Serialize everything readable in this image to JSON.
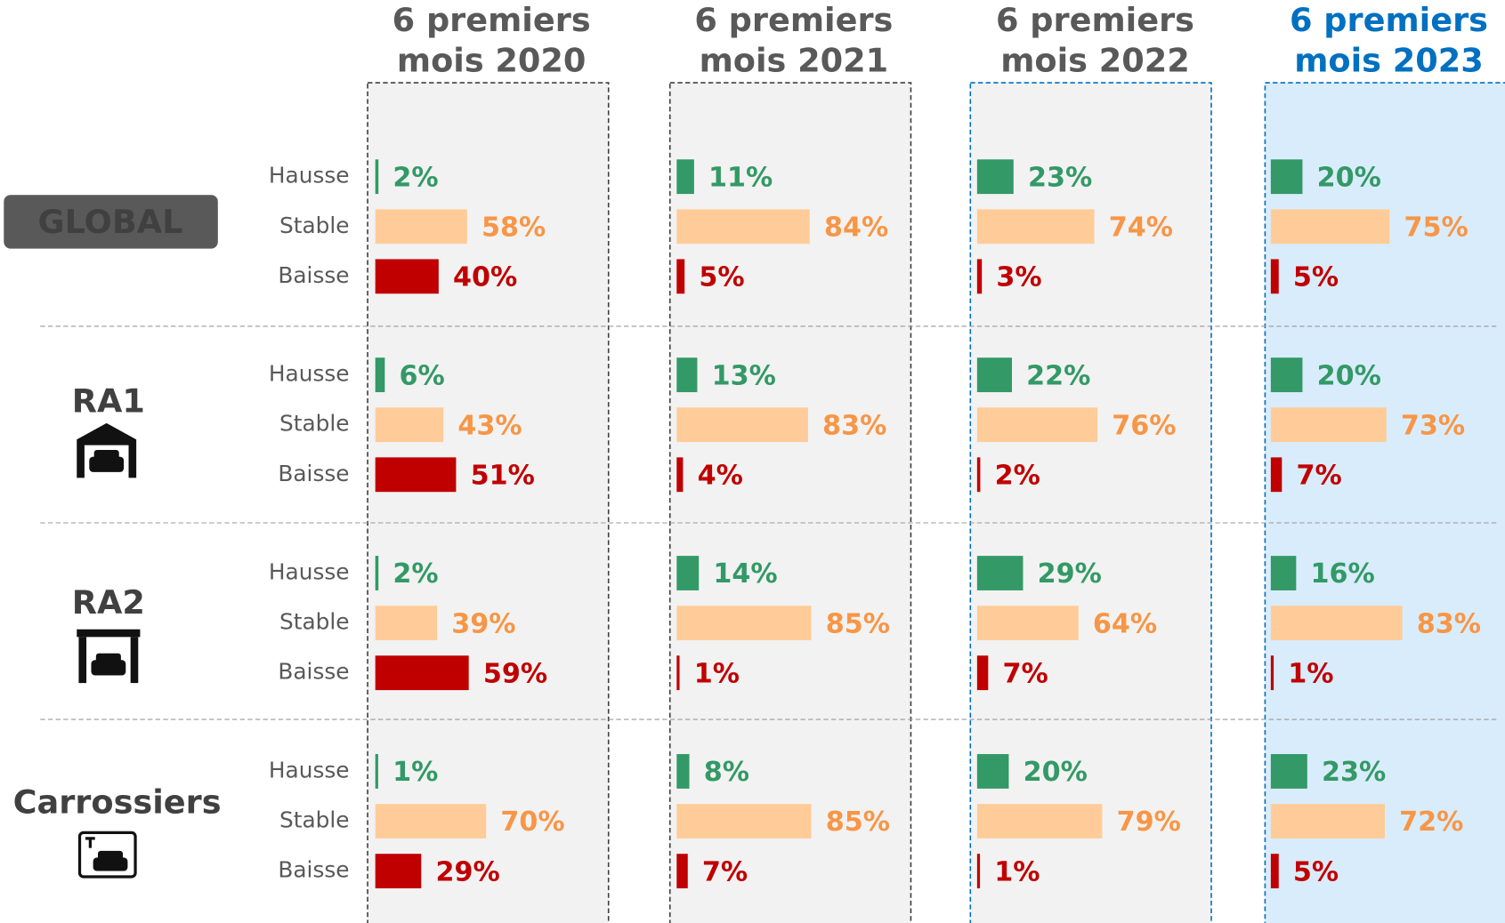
{
  "chart_data": [
    {
      "type": "bar",
      "title": "GLOBAL",
      "categories": [
        "Hausse",
        "Stable",
        "Baisse"
      ],
      "colors": [
        "#339966",
        "#ffcc99",
        "#c00000"
      ],
      "label_colors": [
        "#339966",
        "#f79646",
        "#c00000"
      ],
      "xlim": [
        0,
        100
      ],
      "series": [
        {
          "name": "6 premiers mois 2020",
          "color": "#595959",
          "values": [
            2,
            58,
            40
          ],
          "value_labels": [
            "2%",
            "58%",
            "40%"
          ]
        },
        {
          "name": "6 premiers mois 2021",
          "color": "#595959",
          "values": [
            11,
            84,
            5
          ],
          "value_labels": [
            "11%",
            "84%",
            "5%"
          ]
        },
        {
          "name": "6 premiers mois 2022",
          "color": "#595959",
          "values": [
            23,
            74,
            3
          ],
          "value_labels": [
            "23%",
            "74%",
            "3%"
          ]
        },
        {
          "name": "6 premiers mois 2023",
          "color": "#0070c0",
          "values": [
            20,
            75,
            5
          ],
          "value_labels": [
            "20%",
            "75%",
            "5%"
          ]
        }
      ]
    },
    {
      "type": "bar",
      "title": "RA1",
      "categories": [
        "Hausse",
        "Stable",
        "Baisse"
      ],
      "colors": [
        "#339966",
        "#ffcc99",
        "#c00000"
      ],
      "label_colors": [
        "#339966",
        "#f79646",
        "#c00000"
      ],
      "xlim": [
        0,
        100
      ],
      "series": [
        {
          "values": [
            6,
            43,
            51
          ],
          "value_labels": [
            "6%",
            "43%",
            "51%"
          ]
        },
        {
          "values": [
            13,
            83,
            4
          ],
          "value_labels": [
            "13%",
            "83%",
            "4%"
          ]
        },
        {
          "values": [
            22,
            76,
            2
          ],
          "value_labels": [
            "22%",
            "76%",
            "2%"
          ]
        },
        {
          "values": [
            20,
            73,
            7
          ],
          "value_labels": [
            "20%",
            "73%",
            "7%"
          ]
        }
      ]
    },
    {
      "type": "bar",
      "title": "RA2",
      "categories": [
        "Hausse",
        "Stable",
        "Baisse"
      ],
      "colors": [
        "#339966",
        "#ffcc99",
        "#c00000"
      ],
      "label_colors": [
        "#339966",
        "#f79646",
        "#c00000"
      ],
      "xlim": [
        0,
        100
      ],
      "series": [
        {
          "values": [
            2,
            39,
            59
          ],
          "value_labels": [
            "2%",
            "39%",
            "59%"
          ]
        },
        {
          "values": [
            14,
            85,
            1
          ],
          "value_labels": [
            "14%",
            "85%",
            "1%"
          ]
        },
        {
          "values": [
            29,
            64,
            7
          ],
          "value_labels": [
            "29%",
            "64%",
            "7%"
          ]
        },
        {
          "values": [
            16,
            83,
            1
          ],
          "value_labels": [
            "16%",
            "83%",
            "1%"
          ]
        }
      ]
    },
    {
      "type": "bar",
      "title": "Carrossiers",
      "categories": [
        "Hausse",
        "Stable",
        "Baisse"
      ],
      "colors": [
        "#339966",
        "#ffcc99",
        "#c00000"
      ],
      "label_colors": [
        "#339966",
        "#f79646",
        "#c00000"
      ],
      "xlim": [
        0,
        100
      ],
      "series": [
        {
          "values": [
            1,
            70,
            29
          ],
          "value_labels": [
            "1%",
            "70%",
            "29%"
          ]
        },
        {
          "values": [
            8,
            85,
            7
          ],
          "value_labels": [
            "8%",
            "85%",
            "7%"
          ]
        },
        {
          "values": [
            20,
            79,
            1
          ],
          "value_labels": [
            "20%",
            "79%",
            "1%"
          ]
        },
        {
          "values": [
            23,
            72,
            5
          ],
          "value_labels": [
            "23%",
            "72%",
            "5%"
          ]
        }
      ]
    }
  ]
}
